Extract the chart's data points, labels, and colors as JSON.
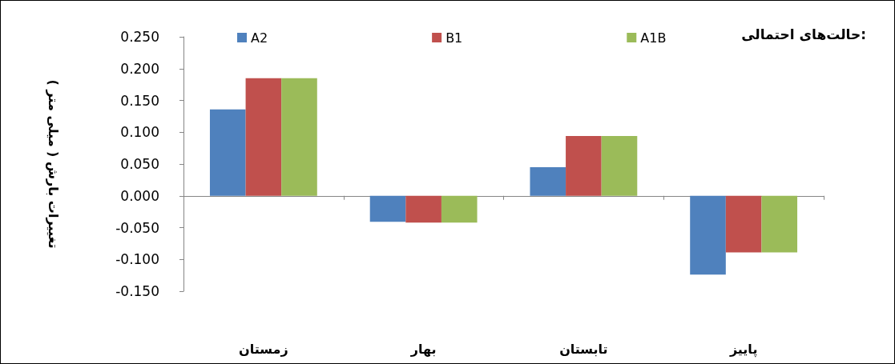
{
  "chart_data": {
    "type": "bar",
    "categories": [
      "زمستان",
      "بهار",
      "تابستان",
      "پاییز"
    ],
    "series": [
      {
        "name": "A2",
        "color": "#4f81bd",
        "values": [
          0.136,
          -0.041,
          0.045,
          -0.124
        ]
      },
      {
        "name": "B1",
        "color": "#c0504d",
        "values": [
          0.185,
          -0.042,
          0.094,
          -0.089
        ]
      },
      {
        "name": "A1B",
        "color": "#9bbb59",
        "values": [
          0.185,
          -0.042,
          0.094,
          -0.089
        ]
      }
    ],
    "ylabel": "تغییرات بارش ( میلی متر )",
    "legend_title": "حالت‌های احتمالی:",
    "legend": "top",
    "ylim": [
      -0.15,
      0.25
    ],
    "yticks": [
      {
        "value": -0.15,
        "label": "-0.150"
      },
      {
        "value": -0.1,
        "label": "-0.100"
      },
      {
        "value": -0.05,
        "label": "-0.050"
      },
      {
        "value": 0,
        "label": "0.000"
      },
      {
        "value": 0.05,
        "label": "0.050"
      },
      {
        "value": 0.1,
        "label": "0.100"
      },
      {
        "value": 0.15,
        "label": "0.150"
      },
      {
        "value": 0.2,
        "label": "0.200"
      },
      {
        "value": 0.25,
        "label": "0.250"
      }
    ]
  }
}
